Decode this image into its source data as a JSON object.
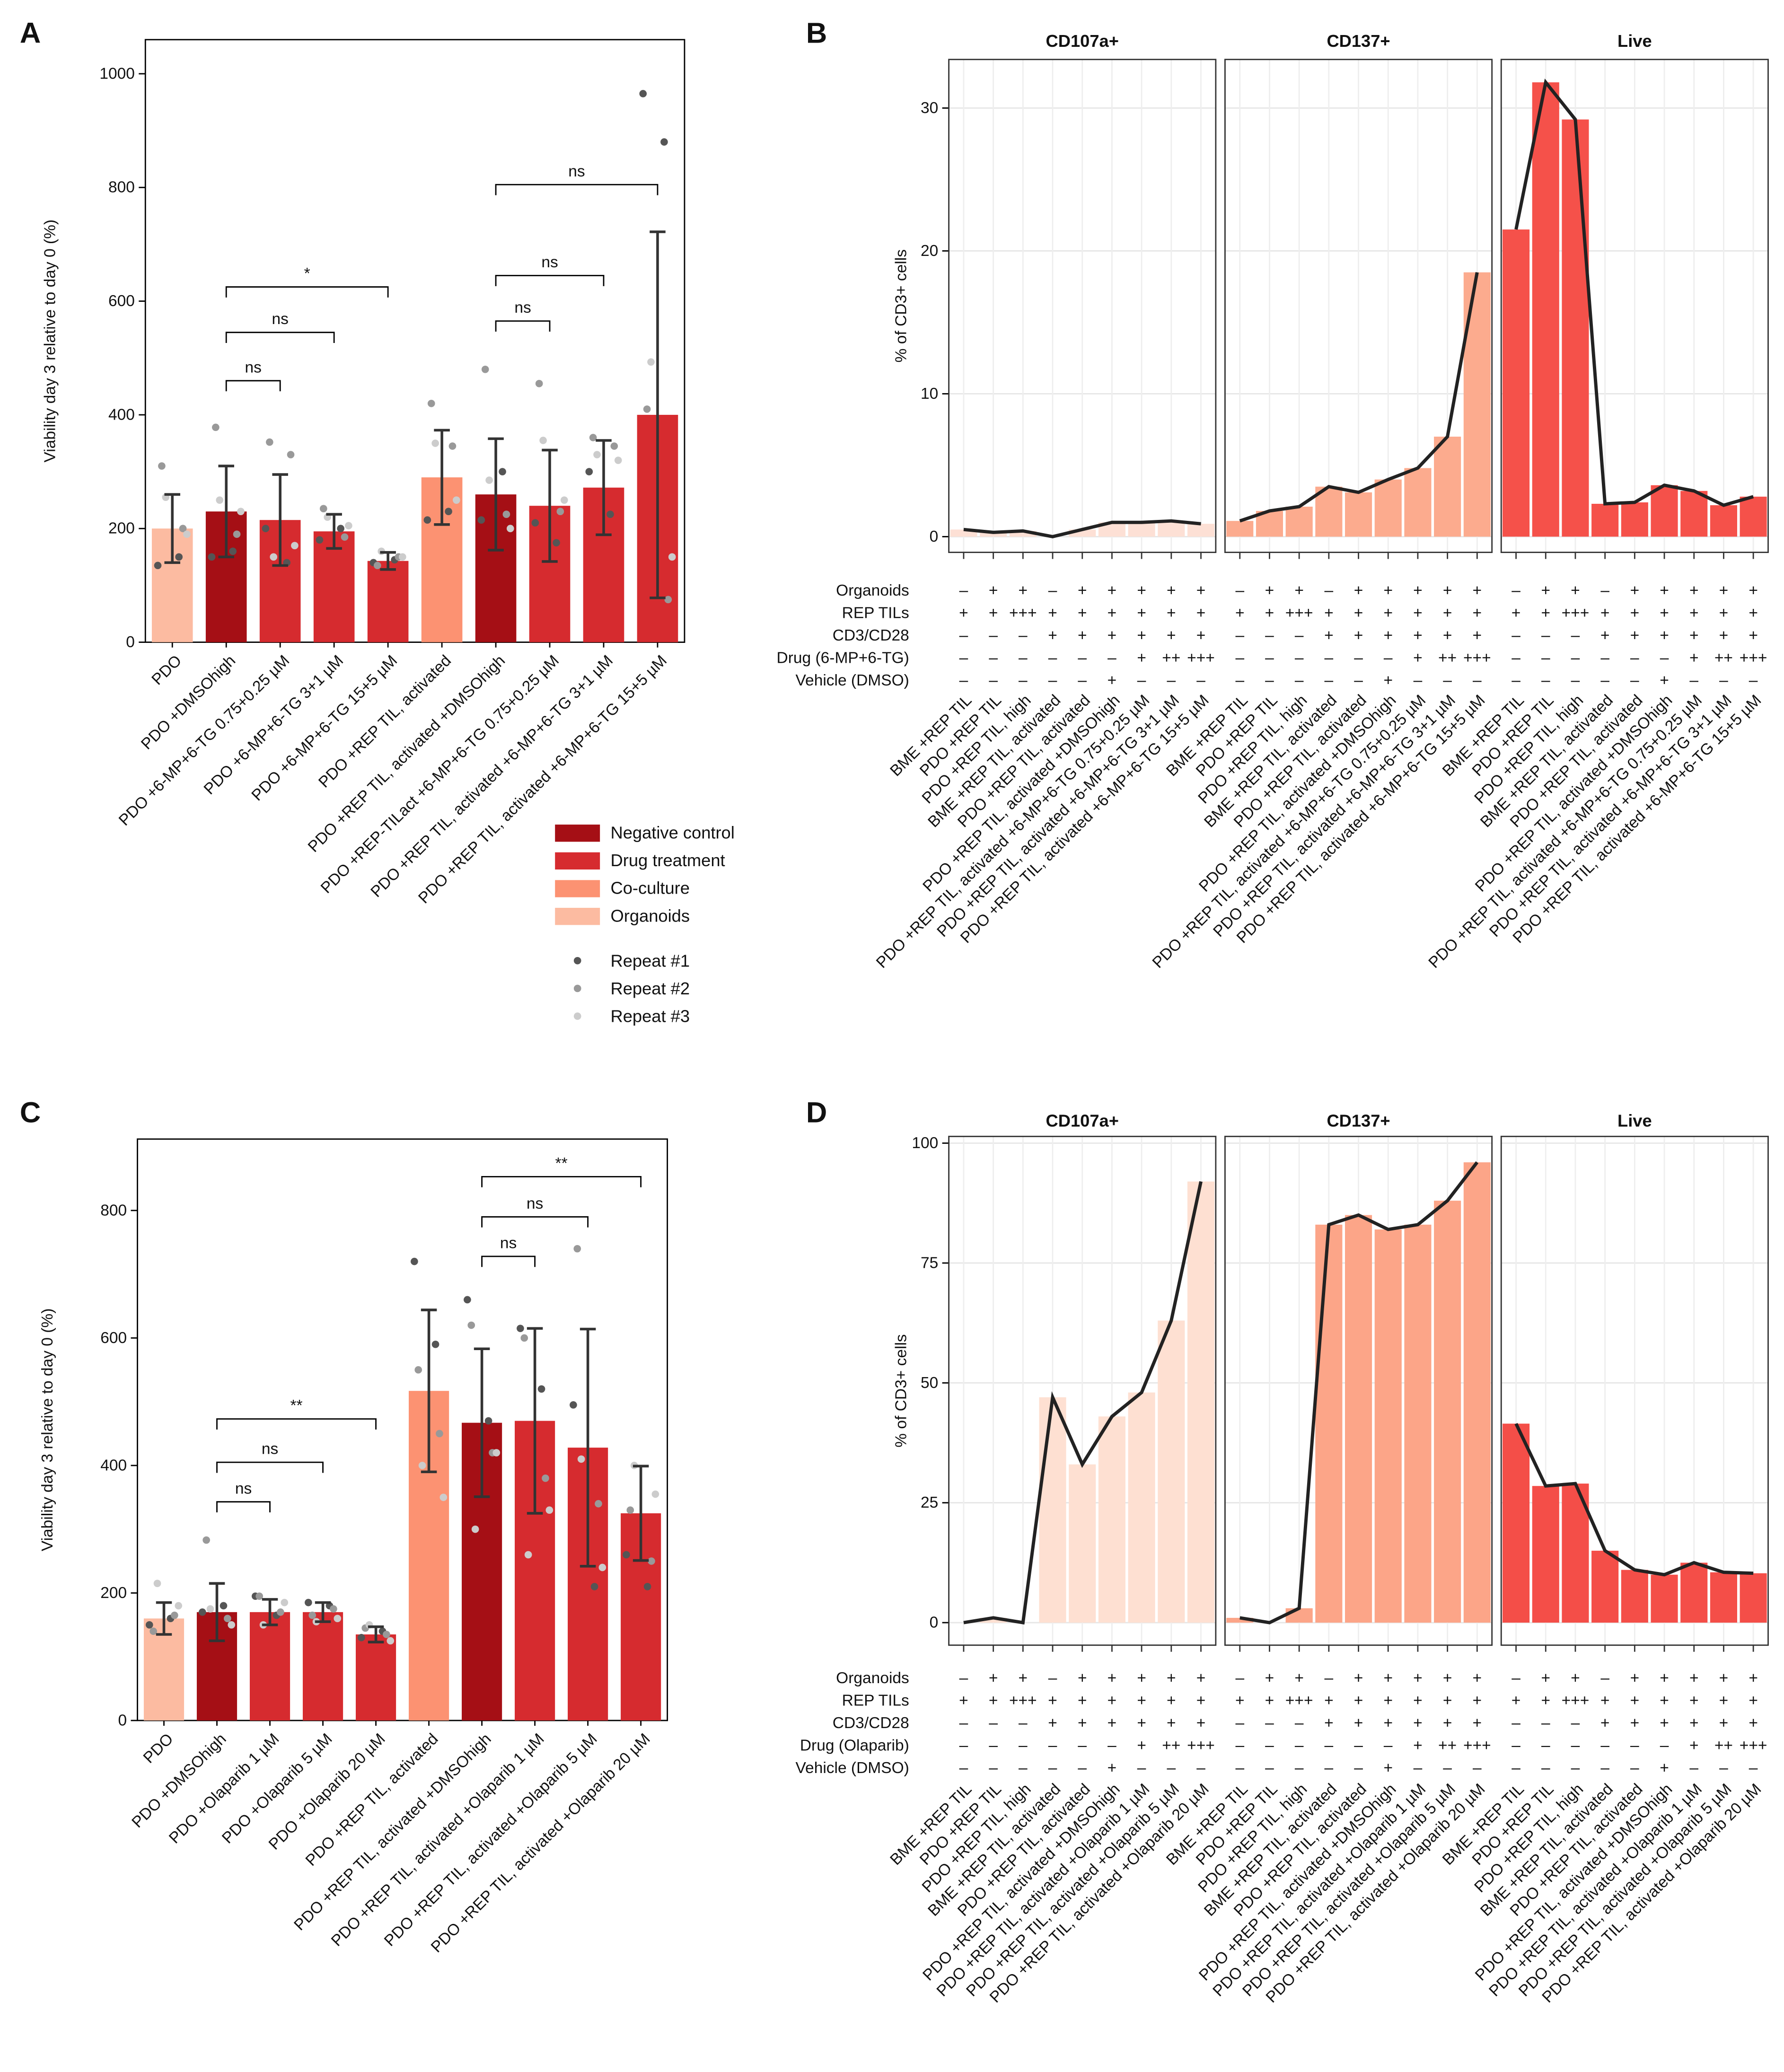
{
  "chart_data": [
    {
      "type": "bar",
      "panel": "A",
      "ylabel": "Viability day 3 relative to day 0 (%)",
      "categories": [
        "PDO",
        "PDO +DMSOhigh",
        "PDO +6-MP+6-TG 0.75+0.25 µM",
        "PDO +6-MP+6-TG 3+1 µM",
        "PDO +6-MP+6-TG 15+5 µM",
        "PDO +REP TIL, activated",
        "PDO +REP TIL, activated +DMSOhigh",
        "PDO +REP-TILact +6-MP+6-TG 0.75+0.25 µM",
        "PDO +REP TIL, activated +6-MP+6-TG 3+1 µM",
        "PDO +REP TIL, activated +6-MP+6-TG 15+5 µM"
      ],
      "values": [
        200,
        230,
        215,
        195,
        143,
        290,
        260,
        240,
        272,
        400
      ],
      "errors": [
        60,
        80,
        80,
        30,
        15,
        83,
        98,
        98,
        83,
        322
      ],
      "colors": [
        "#fcbba1",
        "#a50f15",
        "#d62b2f",
        "#d62b2f",
        "#d62b2f",
        "#fc9272",
        "#a50f15",
        "#d62b2f",
        "#d62b2f",
        "#d62b2f"
      ],
      "ylim": [
        0,
        1060
      ],
      "yticks": [
        0,
        200,
        400,
        600,
        800,
        1000
      ],
      "points": [
        {
          "name": "Repeat #1",
          "color": "#555555",
          "values": [
            [
              135,
              150
            ],
            [
              150,
              160
            ],
            [
              200,
              140
            ],
            [
              180,
              200
            ],
            [
              140,
              145
            ],
            [
              215,
              230
            ],
            [
              215,
              300
            ],
            [
              210,
              175
            ],
            [
              300,
              225
            ],
            [
              965,
              880
            ]
          ]
        },
        {
          "name": "Repeat #2",
          "color": "#999999",
          "values": [
            [
              310,
              200
            ],
            [
              378,
              190
            ],
            [
              352,
              330
            ],
            [
              235,
              185
            ],
            [
              135,
              150
            ],
            [
              420,
              345
            ],
            [
              480,
              225
            ],
            [
              455,
              230
            ],
            [
              360,
              345
            ],
            [
              410,
              75
            ]
          ]
        },
        {
          "name": "Repeat #3",
          "color": "#cccccc",
          "values": [
            [
              255,
              190
            ],
            [
              250,
              230
            ],
            [
              150,
              170
            ],
            [
              220,
              205
            ],
            [
              160,
              150
            ],
            [
              350,
              250
            ],
            [
              285,
              200
            ],
            [
              355,
              250
            ],
            [
              330,
              320
            ],
            [
              493,
              150
            ]
          ]
        }
      ],
      "brackets": [
        {
          "from": 1,
          "to": 2,
          "y": 460,
          "label": "ns"
        },
        {
          "from": 1,
          "to": 3,
          "y": 545,
          "label": "ns"
        },
        {
          "from": 1,
          "to": 4,
          "y": 625,
          "label": "*"
        },
        {
          "from": 6,
          "to": 7,
          "y": 565,
          "label": "ns"
        },
        {
          "from": 6,
          "to": 8,
          "y": 645,
          "label": "ns"
        },
        {
          "from": 6,
          "to": 9,
          "y": 805,
          "label": "ns"
        }
      ],
      "legend": [
        {
          "name": "Negative control",
          "color": "#a50f15"
        },
        {
          "name": "Drug treatment",
          "color": "#d62b2f"
        },
        {
          "name": "Co-culture",
          "color": "#fc9272"
        },
        {
          "name": "Organoids",
          "color": "#fcbba1"
        }
      ]
    },
    {
      "type": "facet_bar",
      "panel": "B",
      "ylabel": "% of CD3+ cells",
      "categories": [
        "BME +REP TIL",
        "PDO +REP TIL",
        "PDO +REP TIL, high",
        "BME +REP TIL, activated",
        "PDO +REP TIL, activated",
        "PDO +REP TIL, activated +DMSOhigh",
        "PDO +REP TIL, activated +6-MP+6-TG 0.75+0.25 µM",
        "PDO +REP TIL, activated +6-MP+6-TG 3+1 µM",
        "PDO +REP TIL, activated +6-MP+6-TG 15+5 µM"
      ],
      "ylim": [
        -1.1,
        33.4
      ],
      "yticks": [
        0,
        10,
        20,
        30
      ],
      "facets": [
        {
          "name": "CD107a+",
          "color": "#fde0d5",
          "values": [
            0.5,
            0.3,
            0.4,
            0,
            0.5,
            1.0,
            1.0,
            1.1,
            0.9
          ]
        },
        {
          "name": "CD137+",
          "color": "#fcab8e",
          "values": [
            1.1,
            1.8,
            2.1,
            3.5,
            3.1,
            4.0,
            4.8,
            7.0,
            18.5
          ]
        },
        {
          "name": "Live",
          "color": "#f5514a",
          "values": [
            21.5,
            31.8,
            29.2,
            2.3,
            2.4,
            3.6,
            3.2,
            2.2,
            2.8
          ]
        }
      ],
      "rows": [
        {
          "label": "Organoids",
          "values": [
            "–",
            "+",
            "+",
            "–",
            "+",
            "+",
            "+",
            "+",
            "+"
          ]
        },
        {
          "label": "REP TILs",
          "values": [
            "+",
            "+",
            "+++",
            "+",
            "+",
            "+",
            "+",
            "+",
            "+"
          ]
        },
        {
          "label": "CD3/CD28",
          "values": [
            "–",
            "–",
            "–",
            "+",
            "+",
            "+",
            "+",
            "+",
            "+"
          ]
        },
        {
          "label": "Drug (6-MP+6-TG)",
          "values": [
            "–",
            "–",
            "–",
            "–",
            "–",
            "–",
            "+",
            "++",
            "+++"
          ]
        },
        {
          "label": "Vehicle (DMSO)",
          "values": [
            "–",
            "–",
            "–",
            "–",
            "–",
            "+",
            "–",
            "–",
            "–"
          ]
        }
      ]
    },
    {
      "type": "bar",
      "panel": "C",
      "ylabel": "Viability day 3 relative to day 0 (%)",
      "categories": [
        "PDO",
        "PDO +DMSOhigh",
        "PDO +Olaparib 1 µM",
        "PDO +Olaparib 5 µM",
        "PDO +Olaparib 20 µM",
        "PDO +REP TIL, activated",
        "PDO +REP TIL, activated +DMSOhigh",
        "PDO +REP TIL, activated +Olaparib 1 µM",
        "PDO +REP TIL, activated +Olaparib 5 µM",
        "PDO +REP TIL, activated +Olaparib 20 µM"
      ],
      "values": [
        160,
        170,
        170,
        170,
        135,
        517,
        467,
        470,
        428,
        325
      ],
      "errors": [
        25,
        45,
        20,
        15,
        12,
        127,
        116,
        145,
        186,
        74
      ],
      "colors": [
        "#fcbba1",
        "#a50f15",
        "#d62b2f",
        "#d62b2f",
        "#d62b2f",
        "#fc9272",
        "#a50f15",
        "#d62b2f",
        "#d62b2f",
        "#d62b2f"
      ],
      "ylim": [
        0,
        912
      ],
      "yticks": [
        0,
        200,
        400,
        600,
        800
      ],
      "points": [
        {
          "color": "#555555",
          "values": [
            [
              150,
              160
            ],
            [
              170,
              180
            ],
            [
              195,
              165
            ],
            [
              185,
              180
            ],
            [
              130,
              140
            ],
            [
              720,
              590
            ],
            [
              660,
              470
            ],
            [
              615,
              520
            ],
            [
              495,
              210
            ],
            [
              260,
              210
            ]
          ]
        },
        {
          "color": "#999999",
          "values": [
            [
              140,
              165
            ],
            [
              283,
              160
            ],
            [
              195,
              170
            ],
            [
              165,
              175
            ],
            [
              145,
              135
            ],
            [
              550,
              450
            ],
            [
              620,
              420
            ],
            [
              600,
              380
            ],
            [
              740,
              340
            ],
            [
              330,
              250
            ]
          ]
        },
        {
          "color": "#cccccc",
          "values": [
            [
              215,
              180
            ],
            [
              175,
              150
            ],
            [
              150,
              185
            ],
            [
              155,
              160
            ],
            [
              150,
              125
            ],
            [
              400,
              350
            ],
            [
              300,
              420
            ],
            [
              260,
              330
            ],
            [
              410,
              240
            ],
            [
              400,
              355
            ]
          ]
        }
      ],
      "brackets": [
        {
          "from": 1,
          "to": 2,
          "y": 343,
          "label": "ns"
        },
        {
          "from": 1,
          "to": 3,
          "y": 405,
          "label": "ns"
        },
        {
          "from": 1,
          "to": 4,
          "y": 473,
          "label": "**"
        },
        {
          "from": 6,
          "to": 7,
          "y": 728,
          "label": "ns"
        },
        {
          "from": 6,
          "to": 8,
          "y": 790,
          "label": "ns"
        },
        {
          "from": 6,
          "to": 9,
          "y": 853,
          "label": "**"
        }
      ]
    },
    {
      "type": "facet_bar",
      "panel": "D",
      "ylabel": "% of CD3+ cells",
      "categories": [
        "BME +REP TIL",
        "PDO +REP TIL",
        "PDO +REP TIL, high",
        "BME +REP TIL, activated",
        "PDO +REP TIL, activated",
        "PDO +REP TIL, activated +DMSOhigh",
        "PDO +REP TIL, activated +Olaparib 1 µM",
        "PDO +REP TIL, activated +Olaparib 5 µM",
        "PDO +REP TIL, activated +Olaparib 20 µM"
      ],
      "ylim": [
        -4.7,
        101.4
      ],
      "yticks": [
        0,
        25,
        50,
        75,
        100
      ],
      "facets": [
        {
          "name": "CD107a+",
          "color": "#fee0d2",
          "values": [
            0,
            1,
            0,
            47,
            33,
            43,
            48,
            63,
            92
          ]
        },
        {
          "name": "CD137+",
          "color": "#fca588",
          "values": [
            1,
            0,
            3,
            83,
            85,
            82,
            83,
            88,
            96
          ]
        },
        {
          "name": "Live",
          "color": "#f44e48",
          "values": [
            41.5,
            28.5,
            29,
            15,
            11,
            10,
            12.5,
            10.5,
            10.3
          ]
        }
      ],
      "rows": [
        {
          "label": "Organoids",
          "values": [
            "–",
            "+",
            "+",
            "–",
            "+",
            "+",
            "+",
            "+",
            "+"
          ]
        },
        {
          "label": "REP TILs",
          "values": [
            "+",
            "+",
            "+++",
            "+",
            "+",
            "+",
            "+",
            "+",
            "+"
          ]
        },
        {
          "label": "CD3/CD28",
          "values": [
            "–",
            "–",
            "–",
            "+",
            "+",
            "+",
            "+",
            "+",
            "+"
          ]
        },
        {
          "label": "Drug (Olaparib)",
          "values": [
            "–",
            "–",
            "–",
            "–",
            "–",
            "–",
            "+",
            "++",
            "+++"
          ]
        },
        {
          "label": "Vehicle (DMSO)",
          "values": [
            "–",
            "–",
            "–",
            "–",
            "–",
            "+",
            "–",
            "–",
            "–"
          ]
        }
      ]
    }
  ]
}
